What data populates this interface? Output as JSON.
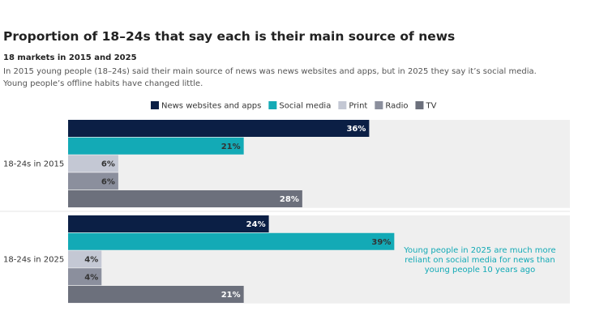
{
  "chart_data": {
    "type": "grouped-hbar",
    "title": "Proportion of 18–24s that say each is their main source of news",
    "subtitle": "18 markets in 2015 and 2025",
    "description": "In 2015 young people (18–24s) said their main source of news was news websites and apps, but in 2025 they say it’s social media. Young people’s offline habits have changed little.",
    "categories": [
      "18-24s in 2015",
      "18-24s in 2025"
    ],
    "series": [
      {
        "name": "News websites and apps",
        "color": "#0b1f45",
        "values": [
          36,
          24
        ],
        "value_labels": [
          "36%",
          "24%"
        ]
      },
      {
        "name": "Social media",
        "color": "#13aab6",
        "values": [
          21,
          39
        ],
        "value_labels": [
          "21%",
          "39%"
        ]
      },
      {
        "name": "Print",
        "color": "#c4c8d4",
        "values": [
          6,
          4
        ],
        "value_labels": [
          "6%",
          "4%"
        ]
      },
      {
        "name": "Radio",
        "color": "#8b8f9d",
        "values": [
          6,
          4
        ],
        "value_labels": [
          "6%",
          "4%"
        ]
      },
      {
        "name": "TV",
        "color": "#6c707c",
        "values": [
          28,
          21
        ],
        "value_labels": [
          "28%",
          "21%"
        ]
      }
    ],
    "xlim": [
      0,
      60
    ],
    "annotation": [
      "Young people in 2025 are much more",
      "reliant on social media for news than",
      "young people 10 years ago"
    ]
  }
}
